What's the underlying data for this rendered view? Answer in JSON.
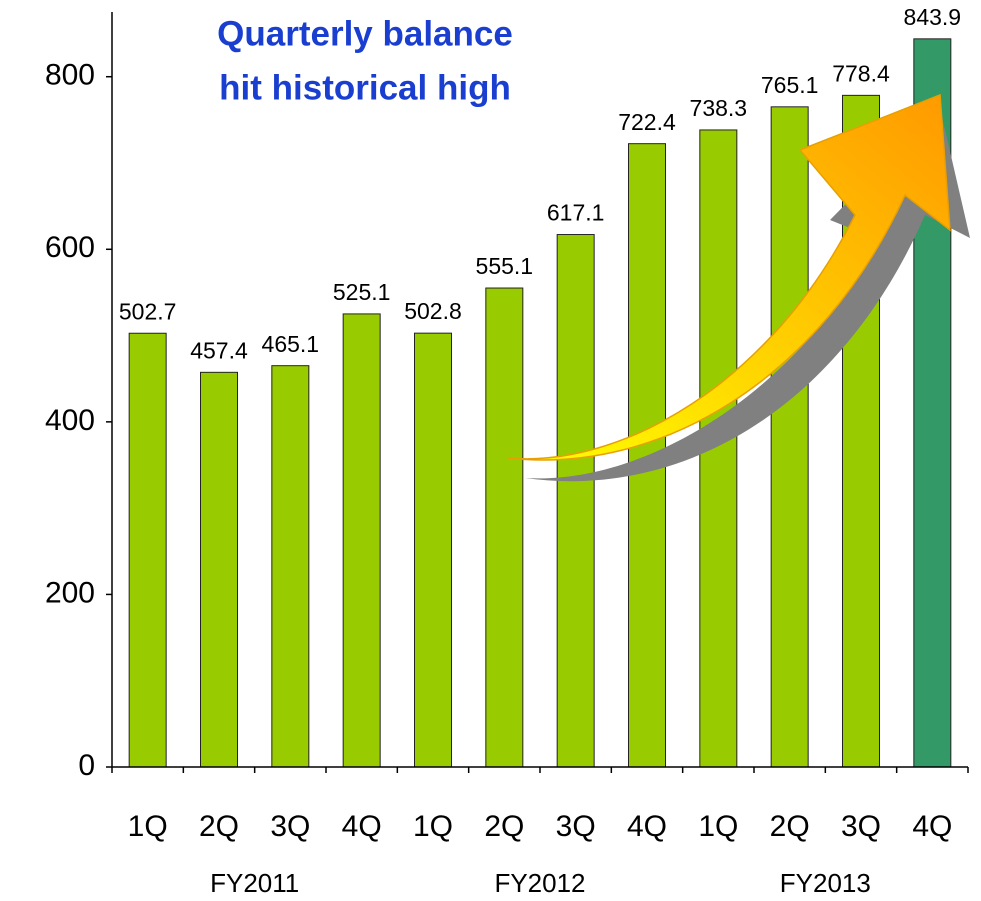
{
  "chart_data": {
    "type": "bar",
    "annotation": [
      "Quarterly balance",
      "hit historical high"
    ],
    "categories": [
      "1Q",
      "2Q",
      "3Q",
      "4Q",
      "1Q",
      "2Q",
      "3Q",
      "4Q",
      "1Q",
      "2Q",
      "3Q",
      "4Q"
    ],
    "group_labels": [
      "FY2011",
      "FY2012",
      "FY2013"
    ],
    "values": [
      502.7,
      457.4,
      465.1,
      525.1,
      502.8,
      555.1,
      617.1,
      722.4,
      738.3,
      765.1,
      778.4,
      843.9
    ],
    "colors": [
      "#99cc00",
      "#99cc00",
      "#99cc00",
      "#99cc00",
      "#99cc00",
      "#99cc00",
      "#99cc00",
      "#99cc00",
      "#99cc00",
      "#99cc00",
      "#99cc00",
      "#339966"
    ],
    "ylim": [
      0,
      875
    ],
    "yticks": [
      0,
      200,
      400,
      600,
      800
    ],
    "grid": false
  }
}
